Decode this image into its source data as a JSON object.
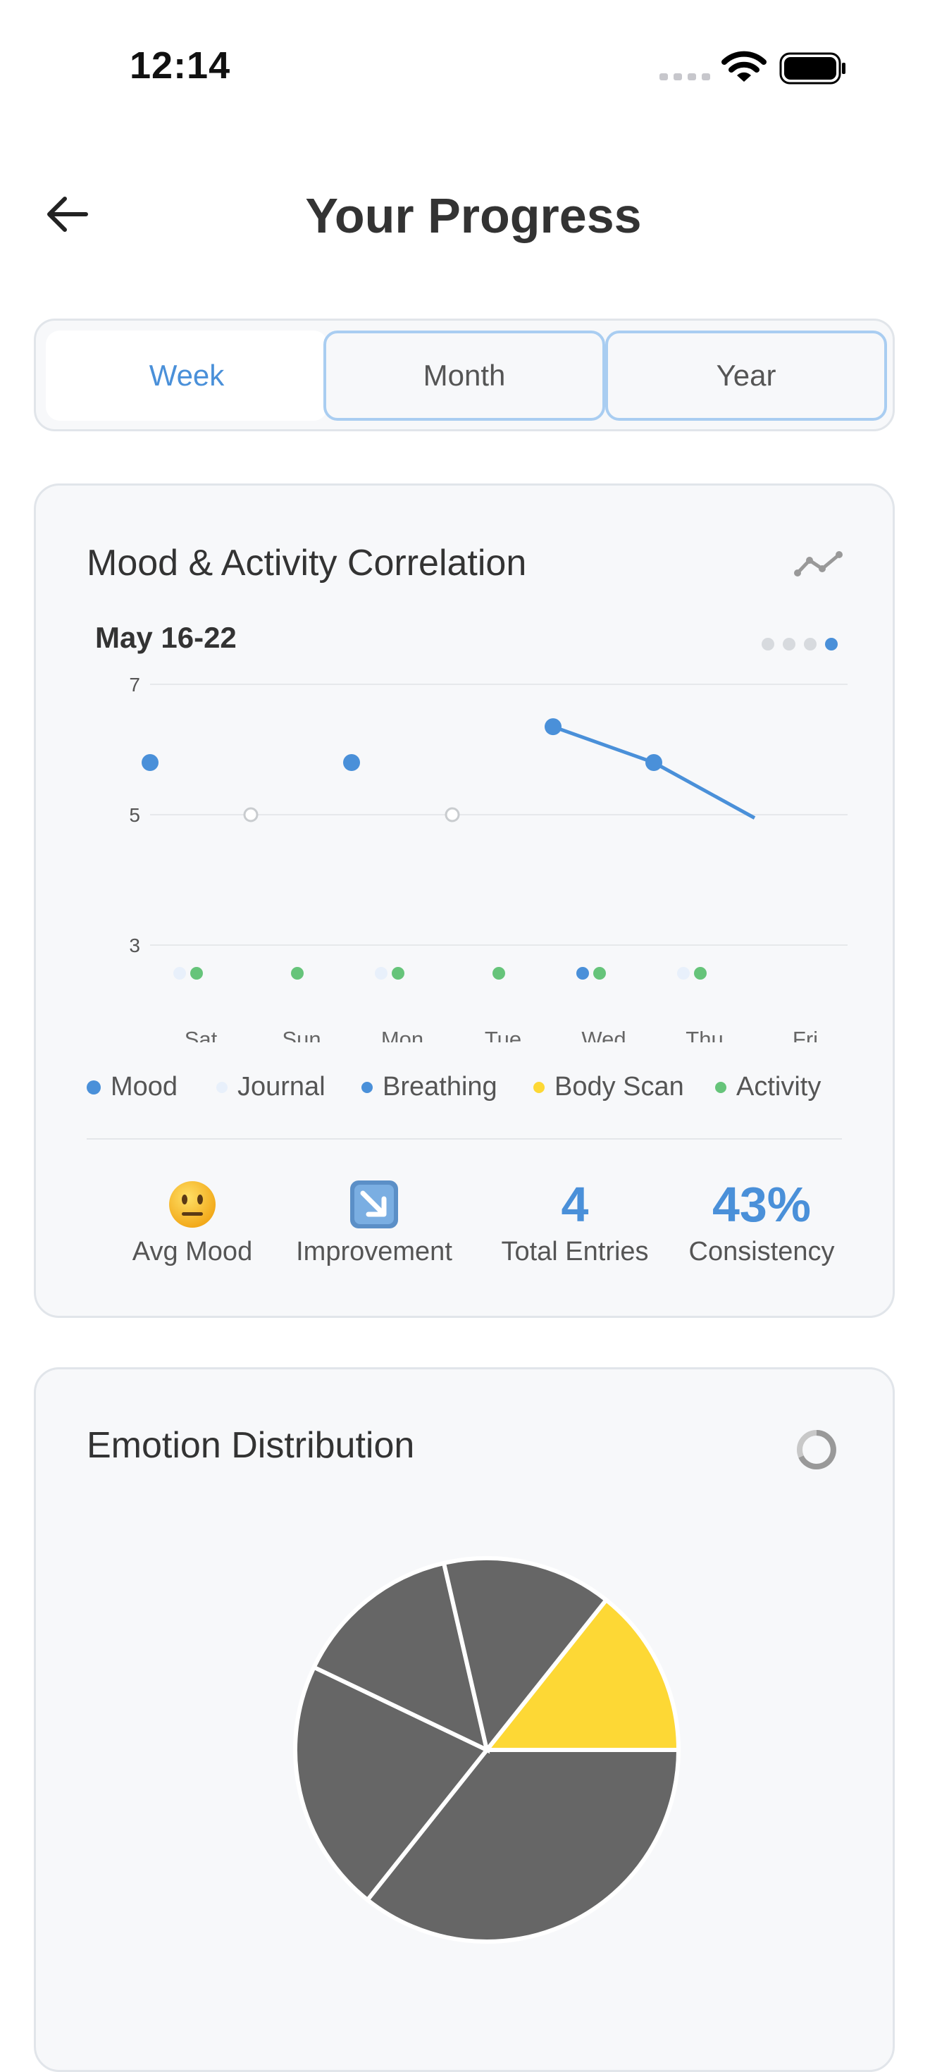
{
  "status_bar": {
    "time": "12:14"
  },
  "header": {
    "title": "Your Progress"
  },
  "segments": {
    "week": "Week",
    "month": "Month",
    "year": "Year",
    "selected": "Week"
  },
  "mood_card": {
    "title": "Mood & Activity Correlation",
    "date_range": "May 16-22",
    "legend": {
      "mood": "Mood",
      "journal": "Journal",
      "breathing": "Breathing",
      "body_scan": "Body Scan",
      "activity": "Activity"
    },
    "stats": {
      "avg_mood_label": "Avg Mood",
      "improvement_label": "Improvement",
      "total_entries_value": "4",
      "total_entries_label": "Total Entries",
      "consistency_value": "43%",
      "consistency_label": "Consistency"
    },
    "colors": {
      "mood": "#4a90d9",
      "journal": "#e8f0fb",
      "breathing": "#4a90d9",
      "body_scan": "#fdd835",
      "activity": "#66c47a"
    }
  },
  "emotion_card": {
    "title": "Emotion Distribution"
  },
  "chart_data": [
    {
      "type": "line",
      "title": "Mood & Activity Correlation",
      "categories": [
        "Sat",
        "Sun",
        "Mon",
        "Tue",
        "Wed",
        "Thu",
        "Fri"
      ],
      "ylim": [
        3,
        7
      ],
      "yticks": [
        7,
        5,
        3
      ],
      "grid": true,
      "legend_position": "bottom",
      "series": [
        {
          "name": "Mood",
          "values": [
            5.8,
            null,
            5.8,
            null,
            6.35,
            5.8,
            4.95
          ]
        },
        {
          "name": "Journal",
          "values": [
            1,
            0,
            1,
            0,
            0,
            1,
            0
          ]
        },
        {
          "name": "Breathing",
          "values": [
            0,
            0,
            0,
            0,
            1,
            0,
            0
          ]
        },
        {
          "name": "Body Scan",
          "values": [
            0,
            0,
            0,
            0,
            0,
            0,
            0
          ]
        },
        {
          "name": "Activity",
          "values": [
            1,
            1,
            1,
            1,
            1,
            1,
            0
          ]
        }
      ]
    },
    {
      "type": "pie",
      "title": "Emotion Distribution",
      "slices": [
        {
          "value": 14.3,
          "color": "#fdd835"
        },
        {
          "value": 35.7,
          "color": "#666666"
        },
        {
          "value": 21.4,
          "color": "#666666"
        },
        {
          "value": 14.3,
          "color": "#666666"
        },
        {
          "value": 14.3,
          "color": "#666666"
        }
      ]
    }
  ]
}
